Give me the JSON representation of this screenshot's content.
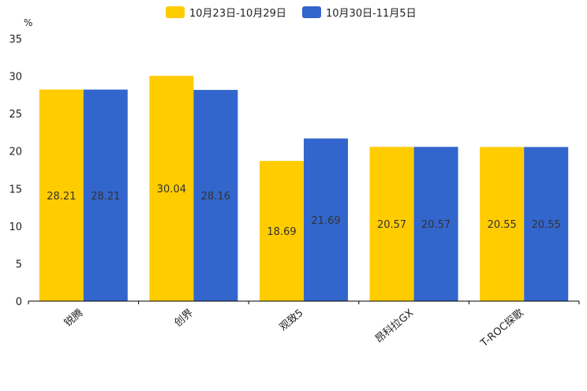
{
  "chart_data": {
    "type": "bar",
    "unit": "%",
    "categories": [
      "锐腾",
      "创界",
      "观致5",
      "昂科拉GX",
      "T-ROC探歌"
    ],
    "series": [
      {
        "name": "10月23日-10月29日",
        "color": "#FFCC00",
        "values": [
          28.21,
          30.04,
          18.69,
          20.57,
          20.55
        ]
      },
      {
        "name": "10月30日-11月5日",
        "color": "#3366CC",
        "values": [
          28.21,
          28.16,
          21.69,
          20.57,
          20.55
        ]
      }
    ],
    "ylim": [
      0,
      35
    ],
    "yticks": [
      0,
      5,
      10,
      15,
      20,
      25,
      30,
      35
    ],
    "legend_position": "top-center"
  }
}
